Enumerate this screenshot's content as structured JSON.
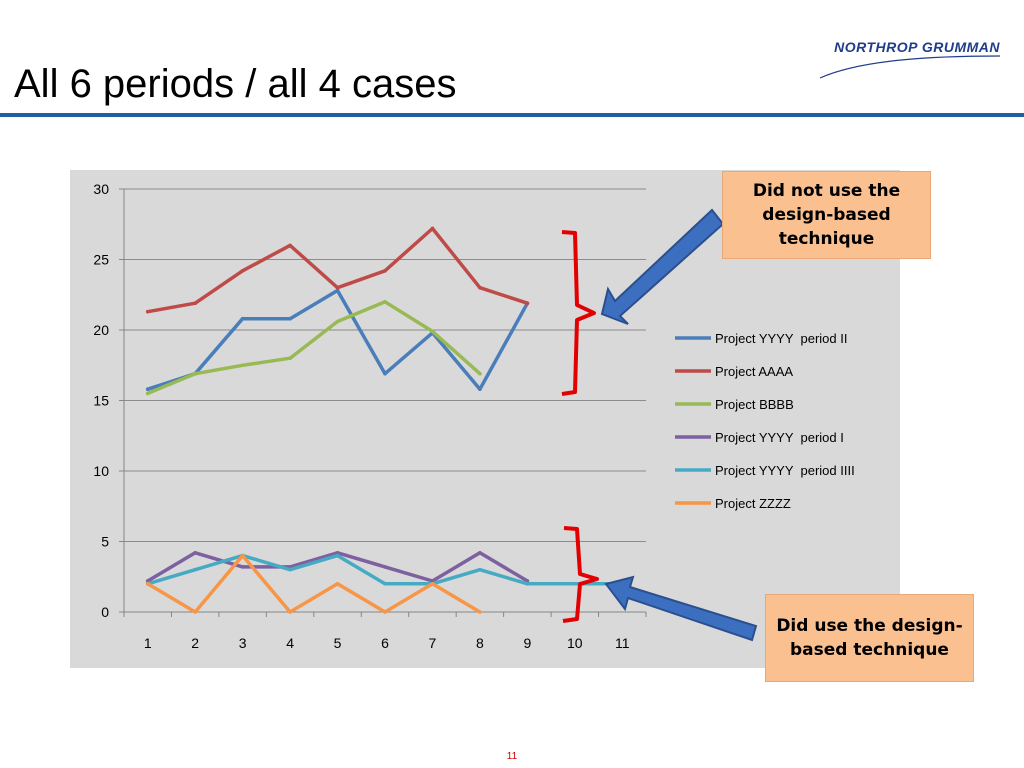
{
  "slide": {
    "title": "All 6 periods / all 4 cases",
    "logo_text": "NORTHROP GRUMMAN",
    "page_number": "11"
  },
  "callouts": {
    "top": "Did not use the design-based technique",
    "bottom": "Did use the design-based technique"
  },
  "colors": {
    "title_rule": "#1f5fa6",
    "plot_background": "#d9d9d9",
    "bracket": "#e30000",
    "arrow": "#3d6fc0",
    "callout_fill": "#fac090"
  },
  "chart_data": {
    "type": "line",
    "x": [
      1,
      2,
      3,
      4,
      5,
      6,
      7,
      8,
      9,
      10,
      11
    ],
    "ylim": [
      0,
      30
    ],
    "yticks": [
      0,
      5,
      10,
      15,
      20,
      25,
      30
    ],
    "grid": true,
    "legend_position": "right",
    "series": [
      {
        "name": "Project YYYY  period II",
        "color": "#4a7ebb",
        "values": [
          15.8,
          16.9,
          20.8,
          20.8,
          22.8,
          16.9,
          19.8,
          15.8,
          21.9,
          null,
          null
        ]
      },
      {
        "name": "Project AAAA",
        "color": "#be4b48",
        "values": [
          21.3,
          21.9,
          24.2,
          26.0,
          23.0,
          24.2,
          27.2,
          23.0,
          21.9,
          null,
          null
        ]
      },
      {
        "name": "Project BBBB",
        "color": "#98b954",
        "values": [
          15.5,
          16.9,
          17.5,
          18.0,
          20.6,
          22.0,
          19.9,
          16.9,
          null,
          null,
          null
        ]
      },
      {
        "name": "Project YYYY  period I",
        "color": "#7d60a0",
        "values": [
          2.2,
          4.2,
          3.2,
          3.2,
          4.2,
          3.2,
          2.2,
          4.2,
          2.2,
          null,
          null
        ]
      },
      {
        "name": "Project YYYY  period IIII",
        "color": "#46aac5",
        "values": [
          2.0,
          3.0,
          4.0,
          3.0,
          4.0,
          2.0,
          2.0,
          3.0,
          2.0,
          2.0,
          2.0
        ]
      },
      {
        "name": "Project ZZZZ",
        "color": "#f79646",
        "values": [
          2.0,
          0.0,
          4.0,
          0.0,
          2.0,
          0.0,
          2.0,
          0.0,
          null,
          null,
          null
        ]
      }
    ]
  }
}
